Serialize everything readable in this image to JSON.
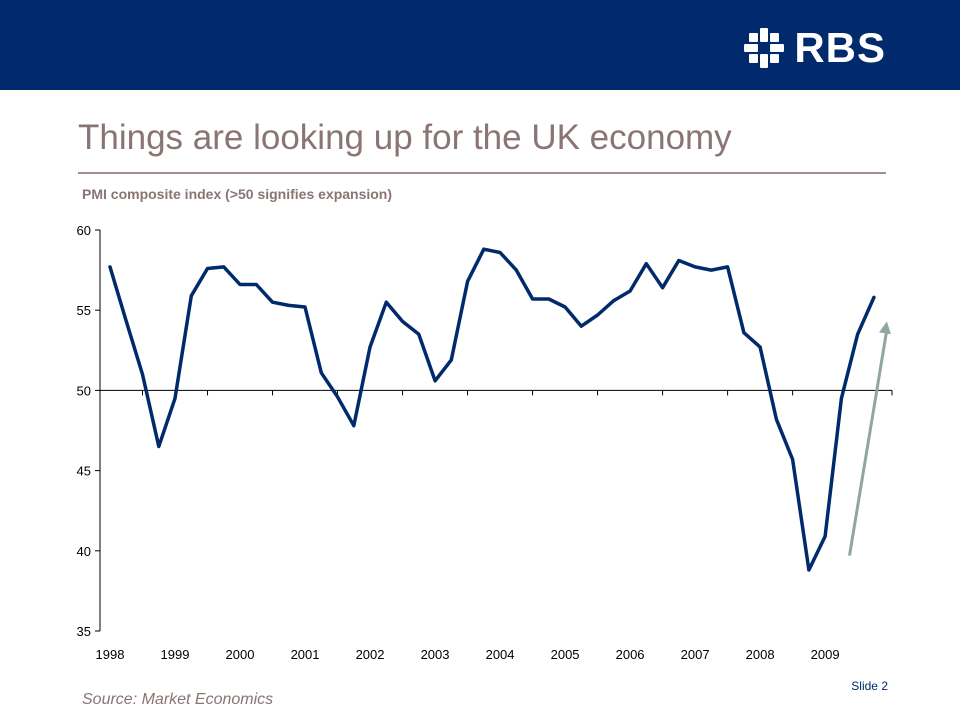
{
  "header": {
    "logo_text": "RBS",
    "brand_color": "#002a6b",
    "logo_icon": "rbs-daisywheel-icon"
  },
  "slide": {
    "title": "Things are looking up for the UK economy",
    "source": "Source: Market Economics",
    "number": "Slide 2"
  },
  "chart_data": {
    "type": "line",
    "title": "PMI composite index (>50 signifies expansion)",
    "xlabel": "",
    "ylabel": "",
    "ylim": [
      35,
      60
    ],
    "yticks": [
      35,
      40,
      45,
      50,
      55,
      60
    ],
    "xlim": [
      1998,
      2009.875
    ],
    "xticks": [
      "1998",
      "1999",
      "2000",
      "2001",
      "2002",
      "2003",
      "2004",
      "2005",
      "2006",
      "2007",
      "2008",
      "2009"
    ],
    "x_axis_crosses_at": 50,
    "grid": false,
    "legend": "none",
    "line_color": "#002a6b",
    "arrow_color": "#8fa89f",
    "trend_arrow": {
      "from": {
        "x": 2009.375,
        "y": 39.7
      },
      "to": {
        "x": 2009.95,
        "y": 54.3
      }
    },
    "series": [
      {
        "x": [
          1998.0,
          1998.25,
          1998.5,
          1998.75,
          1999.0,
          1999.25,
          1999.5,
          1999.75,
          2000.0,
          2000.25,
          2000.5,
          2000.75,
          2001.0,
          2001.25,
          2001.5,
          2001.75,
          2002.0,
          2002.25,
          2002.5,
          2002.75,
          2003.0,
          2003.25,
          2003.5,
          2003.75,
          2004.0,
          2004.25,
          2004.5,
          2004.75,
          2005.0,
          2005.25,
          2005.5,
          2005.75,
          2006.0,
          2006.25,
          2006.5,
          2006.75,
          2007.0,
          2007.25,
          2007.5,
          2007.75,
          2008.0,
          2008.25,
          2008.5,
          2008.75,
          2009.0,
          2009.25,
          2009.5,
          2009.75
        ],
        "values": [
          57.7,
          54.3,
          51.0,
          46.5,
          49.5,
          55.9,
          57.6,
          57.7,
          56.6,
          56.6,
          55.5,
          55.3,
          55.2,
          51.1,
          49.6,
          47.8,
          52.7,
          55.5,
          54.3,
          53.5,
          50.6,
          51.9,
          56.8,
          58.8,
          58.6,
          57.5,
          55.7,
          55.7,
          55.2,
          54.0,
          54.7,
          55.6,
          56.2,
          57.9,
          56.4,
          58.1,
          57.7,
          57.5,
          57.7,
          53.6,
          52.7,
          48.2,
          45.7,
          38.8,
          40.9,
          49.5,
          53.5,
          55.8
        ]
      }
    ]
  }
}
